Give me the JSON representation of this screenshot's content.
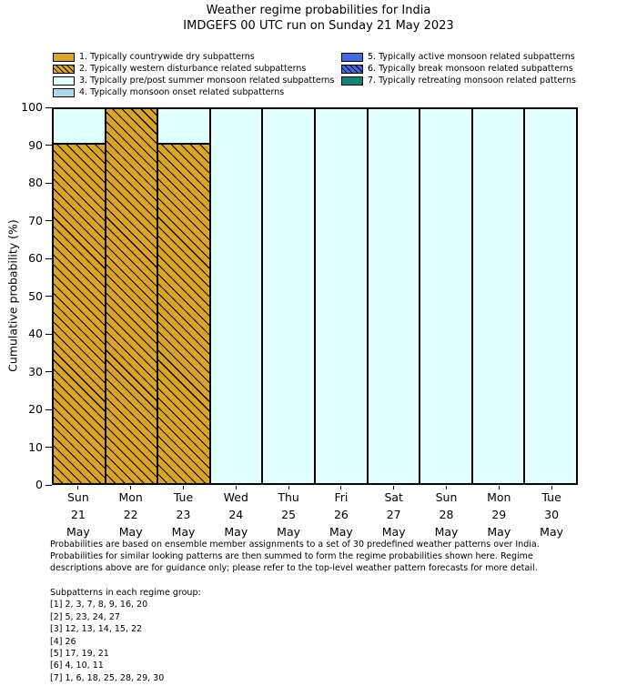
{
  "header": {
    "title_line1": "Weather regime probabilities for India",
    "title_line2": "IMDGEFS 00 UTC run on Sunday 21 May 2023"
  },
  "legend": {
    "items": [
      {
        "label": "1. Typically countrywide dry subpatterns",
        "color": "#DAA520",
        "hatch": false
      },
      {
        "label": "2. Typically western disturbance related subpatterns",
        "color": "#DAA520",
        "hatch": true
      },
      {
        "label": "3. Typically pre/post summer monsoon related subpatterns",
        "color": "#E0FFFF",
        "hatch": false
      },
      {
        "label": "4. Typically monsoon onset related subpatterns",
        "color": "#ADD8E6",
        "hatch": false
      },
      {
        "label": "5. Typically active monsoon related subpatterns",
        "color": "#4169E1",
        "hatch": false
      },
      {
        "label": "6. Typically break monsoon related subpatterns",
        "color": "#4169E1",
        "hatch": true
      },
      {
        "label": "7. Typically retreating monsoon related patterns",
        "color": "#0B8577",
        "hatch": false
      }
    ],
    "column_split": [
      4,
      3
    ]
  },
  "chart_data": {
    "type": "bar",
    "stacked": true,
    "title": "Weather regime probabilities for India — IMDGEFS 00 UTC run on Sunday 21 May 2023",
    "xlabel": "",
    "ylabel": "Cumulative probability (%)",
    "ylim": [
      0,
      100
    ],
    "yticks": [
      0,
      10,
      20,
      30,
      40,
      50,
      60,
      70,
      80,
      90,
      100
    ],
    "grid": false,
    "legend_position": "upper center, two columns above plot",
    "x_tick_labels": [
      [
        "Sun",
        "21",
        "May"
      ],
      [
        "Mon",
        "22",
        "May"
      ],
      [
        "Tue",
        "23",
        "May"
      ],
      [
        "Wed",
        "24",
        "May"
      ],
      [
        "Thu",
        "25",
        "May"
      ],
      [
        "Fri",
        "26",
        "May"
      ],
      [
        "Sat",
        "27",
        "May"
      ],
      [
        "Sun",
        "28",
        "May"
      ],
      [
        "Mon",
        "29",
        "May"
      ],
      [
        "Tue",
        "30",
        "May"
      ]
    ],
    "bar_edge_color": "#000000",
    "series": [
      {
        "name": "2. Typically western disturbance related subpatterns",
        "color": "#DAA520",
        "hatch": true,
        "values": [
          90.5,
          100,
          90.5,
          0,
          0,
          0,
          0,
          0,
          0,
          0
        ]
      },
      {
        "name": "3. Typically pre/post summer monsoon related subpatterns",
        "color": "#E0FFFF",
        "hatch": false,
        "values": [
          9.5,
          0,
          9.5,
          100,
          100,
          100,
          100,
          100,
          100,
          100
        ]
      }
    ]
  },
  "footer": {
    "lines": [
      "Probabilities are based on ensemble member assignments to a set of 30 predefined weather patterns over India.",
      "Probabilities for similar looking patterns are then summed to form the regime probabilities shown here. Regime",
      "descriptions above are for guidance only; please refer to the top-level weather pattern forecasts for more detail."
    ]
  },
  "subpatterns": {
    "heading": "Subpatterns in each regime group:",
    "groups": [
      "[1] 2, 3, 7, 8, 9, 16, 20",
      "[2] 5, 23, 24, 27",
      "[3] 12, 13, 14, 15, 22",
      "[4] 26",
      "[5] 17, 19, 21",
      "[6] 4, 10, 11",
      "[7] 1, 6, 18, 25, 28, 29, 30"
    ]
  }
}
